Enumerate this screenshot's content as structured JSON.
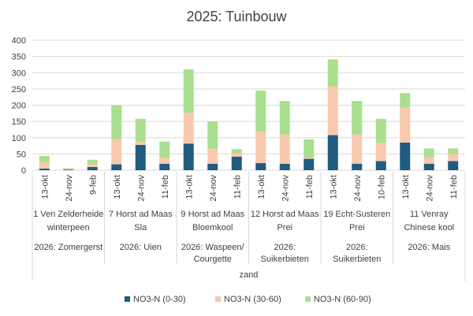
{
  "chart_data": {
    "type": "bar",
    "stacked": true,
    "title": "2025: Tuinbouw",
    "ylim": [
      0,
      400
    ],
    "yticks": [
      0,
      50,
      100,
      150,
      200,
      250,
      300,
      350,
      400
    ],
    "grid": true,
    "legend_position": "bottom",
    "series": [
      {
        "name": "NO3-N (0-30)",
        "color": "#1f5c7f",
        "values": [
          5,
          2,
          10,
          18,
          78,
          20,
          82,
          20,
          42,
          22,
          20,
          35,
          108,
          20,
          28,
          85,
          20,
          28
        ]
      },
      {
        "name": "NO3-N (30-60)",
        "color": "#f9c9ae",
        "values": [
          20,
          2,
          8,
          78,
          10,
          18,
          95,
          45,
          10,
          98,
          90,
          3,
          150,
          90,
          55,
          107,
          20,
          22
        ]
      },
      {
        "name": "NO3-N (60-90)",
        "color": "#a9df8e",
        "values": [
          19,
          2,
          14,
          104,
          70,
          50,
          133,
          85,
          13,
          125,
          103,
          57,
          83,
          103,
          75,
          45,
          27,
          17
        ]
      }
    ],
    "categories": [
      "13-okt",
      "24-nov",
      "9-feb",
      "13-okt",
      "24-nov",
      "11-feb",
      "13-okt",
      "24-nov",
      "11-feb",
      "13-okt",
      "24-nov",
      "11-feb",
      "13-okt",
      "24-nov",
      "10-feb",
      "13-okt",
      "24-nov",
      "11-feb"
    ],
    "groups": [
      {
        "lines": [
          "1 Ven Zelderheide",
          "winterpeen"
        ],
        "crop": [
          "2026: Zomergerst"
        ]
      },
      {
        "lines": [
          "7 Horst ad Maas",
          "Sla"
        ],
        "crop": [
          "2026: Uien"
        ]
      },
      {
        "lines": [
          "9 Horst ad Maas",
          "Bloemkool"
        ],
        "crop": [
          "2026: Waspeen/",
          "Courgette"
        ]
      },
      {
        "lines": [
          "12 Horst ad Maas",
          "Prei"
        ],
        "crop": [
          "2026:",
          "Suikerbieten"
        ]
      },
      {
        "lines": [
          "19 Echt-Susteren",
          "Prei"
        ],
        "crop": [
          "2026:",
          "Suikerbieten"
        ]
      },
      {
        "lines": [
          "11 Venray",
          "Chinese kool"
        ],
        "crop": [
          "2026: Mais"
        ]
      }
    ],
    "outer_label": "zand"
  }
}
